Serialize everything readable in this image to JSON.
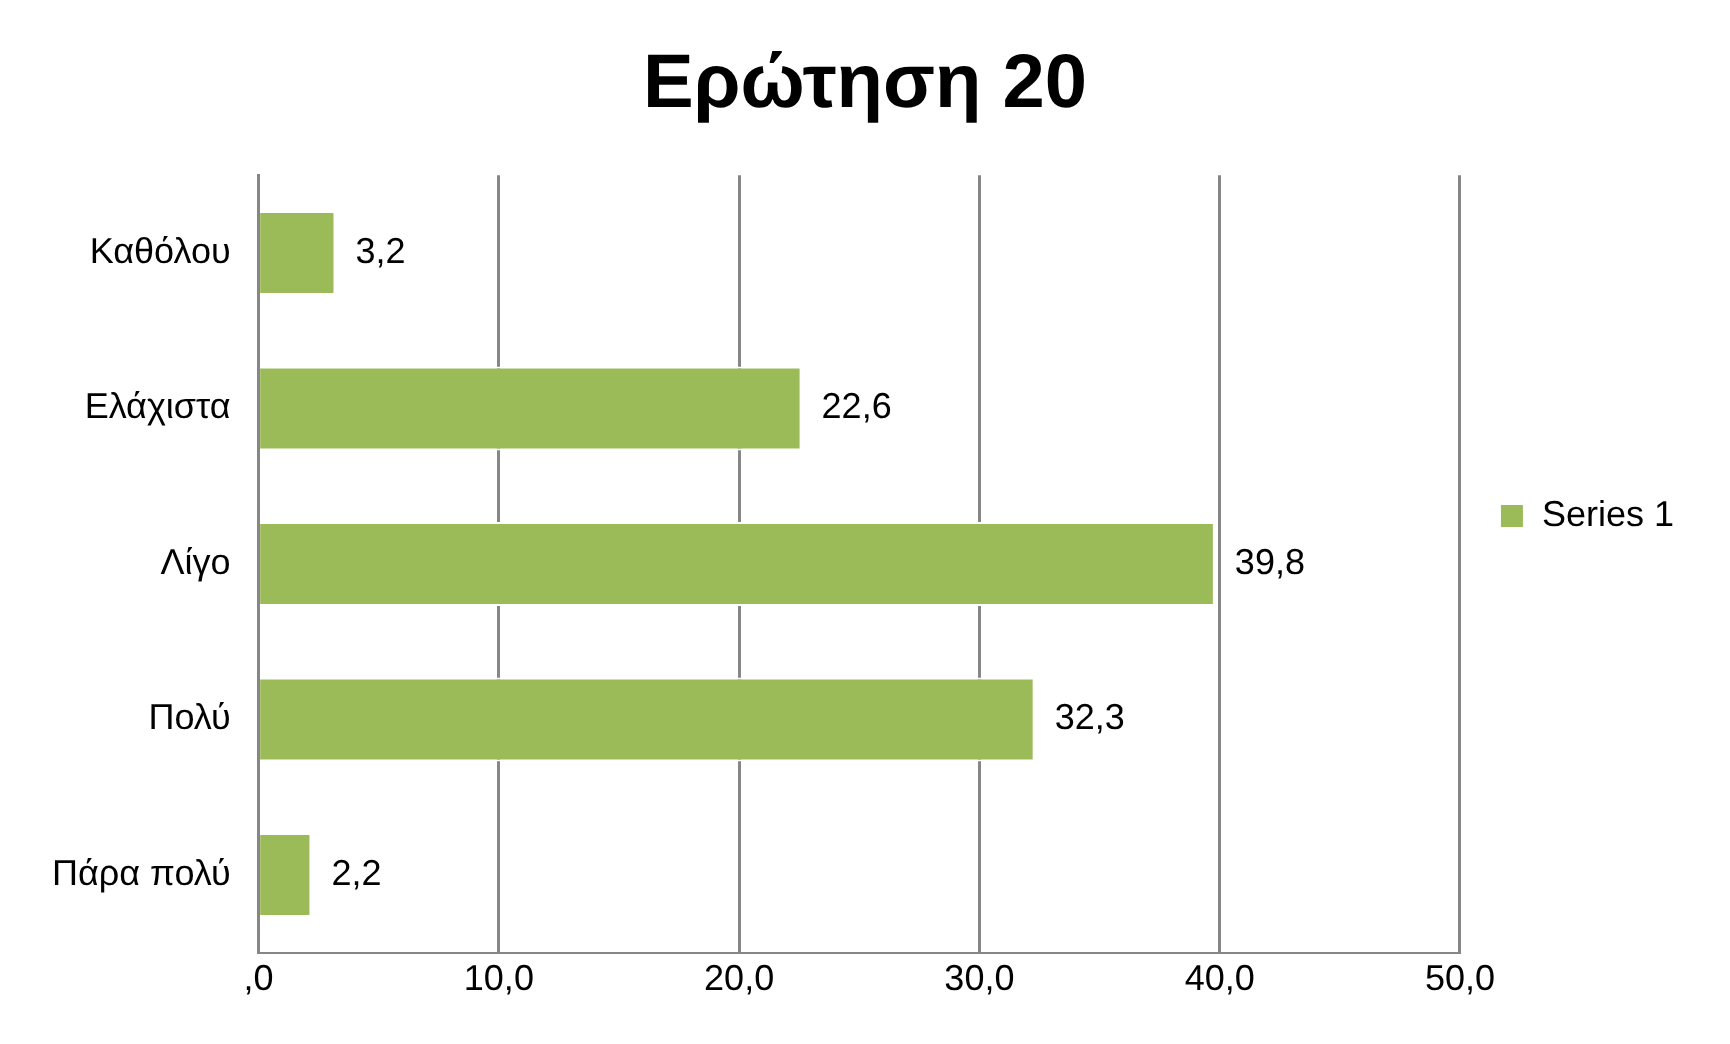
{
  "chart_data": {
    "type": "bar",
    "title": "Ερώτηση 20",
    "orientation": "horizontal",
    "categories": [
      "Καθόλου",
      "Ελάχιστα",
      "Λίγο",
      "Πολύ",
      "Πάρα πολύ"
    ],
    "series": [
      {
        "name": "Series 1",
        "color": "#9bbb59",
        "values": [
          3.2,
          22.6,
          39.8,
          32.3,
          2.2
        ],
        "value_labels": [
          "3,2",
          "22,6",
          "39,8",
          "32,3",
          "2,2"
        ]
      }
    ],
    "xlim": [
      0,
      50
    ],
    "xticks": [
      {
        "value": 0,
        "label": ",0"
      },
      {
        "value": 10,
        "label": "10,0"
      },
      {
        "value": 20,
        "label": "20,0"
      },
      {
        "value": 30,
        "label": "30,0"
      },
      {
        "value": 40,
        "label": "40,0"
      },
      {
        "value": 50,
        "label": "50,0"
      }
    ],
    "grid": "x",
    "legend": "right"
  }
}
